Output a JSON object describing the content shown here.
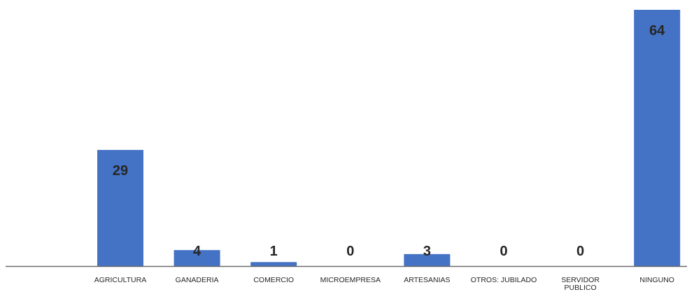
{
  "chart_data": {
    "type": "bar",
    "categories": [
      [
        "AGRICULTURA"
      ],
      [
        "GANADERIA"
      ],
      [
        "COMERCIO"
      ],
      [
        "MICROEMPRESA"
      ],
      [
        "ARTESANIAS"
      ],
      [
        "OTROS: JUBILADO"
      ],
      [
        "SERVIDOR",
        "PUBLICO"
      ],
      [
        "NINGUNO"
      ]
    ],
    "values": [
      29,
      4,
      1,
      0,
      3,
      0,
      0,
      64
    ],
    "ylim": [
      0,
      64
    ],
    "grid": false,
    "legend": "none",
    "bar_color": "#4472C4"
  }
}
